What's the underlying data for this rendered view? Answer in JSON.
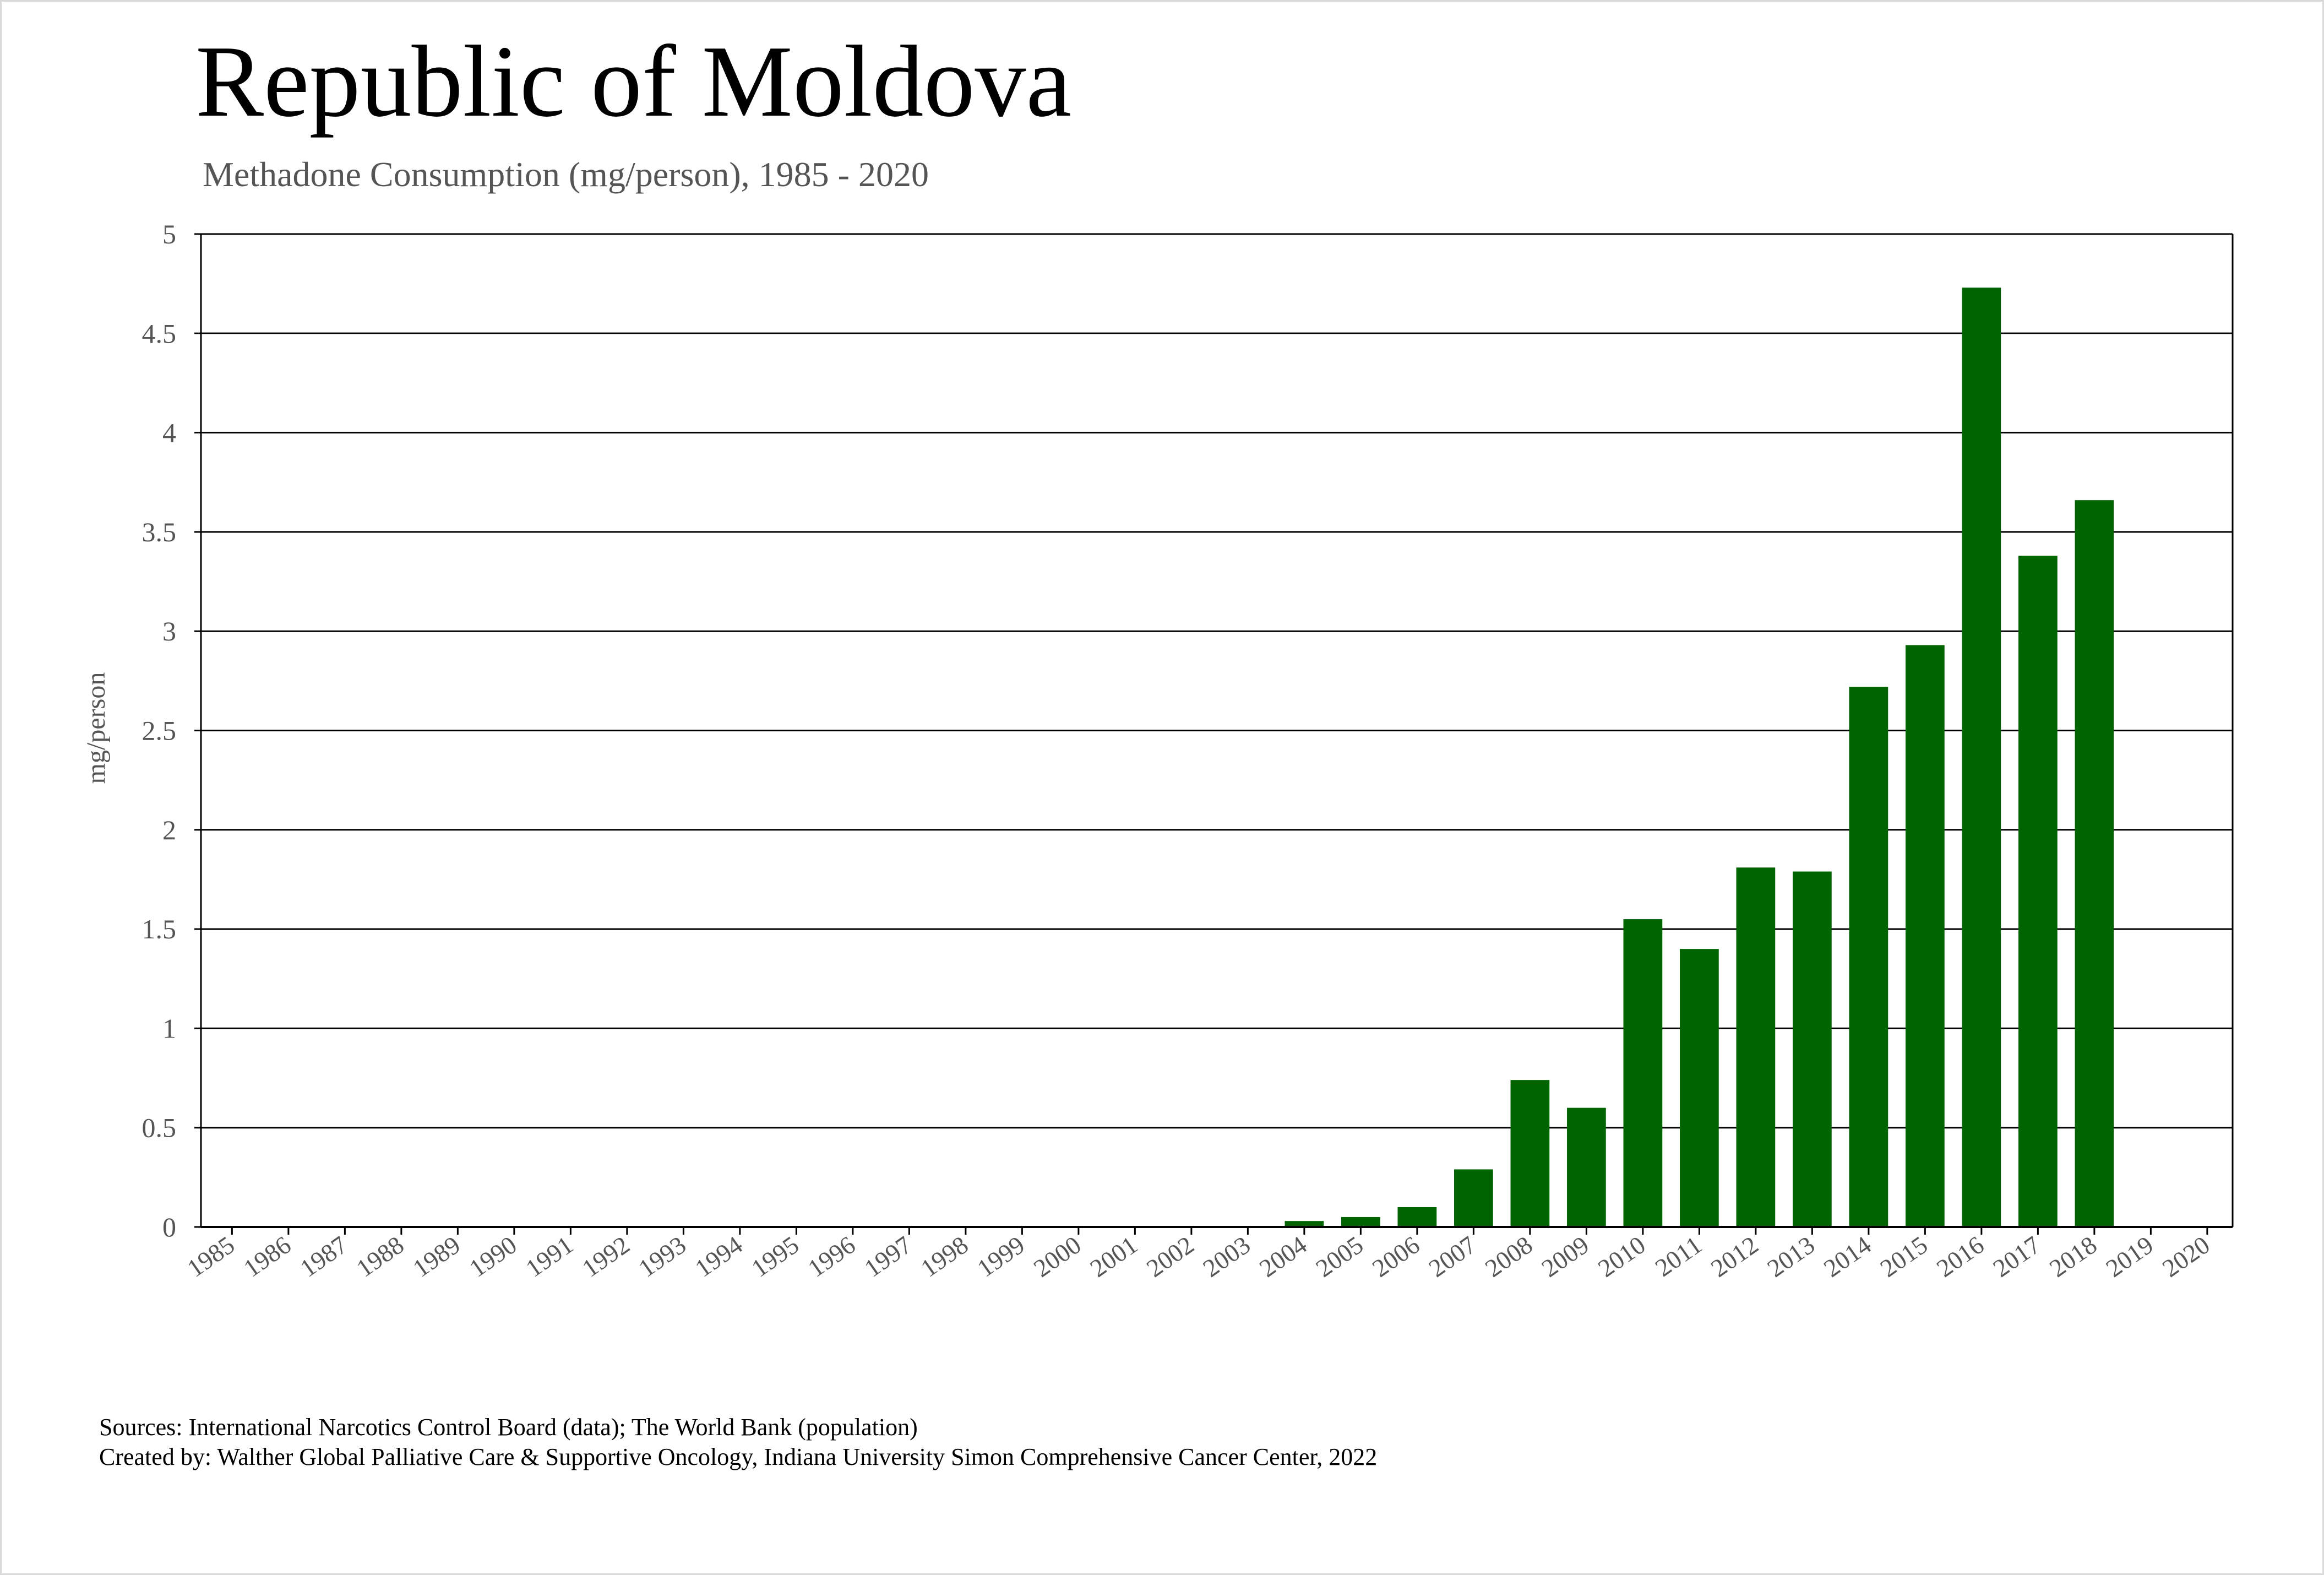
{
  "title": "Republic of Moldova",
  "subtitle": "Methadone Consumption (mg/person), 1985 - 2020",
  "footer": {
    "sources": "Sources: International Narcotics Control Board (data); The World Bank (population)",
    "created_by": "Created by: Walther Global Palliative Care & Supportive Oncology, Indiana University Simon Comprehensive Cancer Center, 2022"
  },
  "colors": {
    "bar": "#006400",
    "grid": "#000000",
    "tick_text": "#555555"
  },
  "chart_data": {
    "type": "bar",
    "title": "Republic of Moldova",
    "subtitle": "Methadone Consumption (mg/person), 1985 - 2020",
    "xlabel": "",
    "ylabel": "mg/person",
    "ylim": [
      0,
      5
    ],
    "yticks": [
      "0",
      "0.5",
      "1",
      "1.5",
      "2",
      "2.5",
      "3",
      "3.5",
      "4",
      "4.5",
      "5"
    ],
    "grid": true,
    "categories": [
      "1985",
      "1986",
      "1987",
      "1988",
      "1989",
      "1990",
      "1991",
      "1992",
      "1993",
      "1994",
      "1995",
      "1996",
      "1997",
      "1998",
      "1999",
      "2000",
      "2001",
      "2002",
      "2003",
      "2004",
      "2005",
      "2006",
      "2007",
      "2008",
      "2009",
      "2010",
      "2011",
      "2012",
      "2013",
      "2014",
      "2015",
      "2016",
      "2017",
      "2018",
      "2019",
      "2020"
    ],
    "values": [
      0,
      0,
      0,
      0,
      0,
      0,
      0,
      0,
      0,
      0,
      0,
      0,
      0,
      0,
      0,
      0,
      0,
      0,
      0,
      0.03,
      0.05,
      0.1,
      0.29,
      0.74,
      0.6,
      1.55,
      1.4,
      1.81,
      1.79,
      2.72,
      2.93,
      4.73,
      3.38,
      3.66,
      0,
      0
    ]
  }
}
